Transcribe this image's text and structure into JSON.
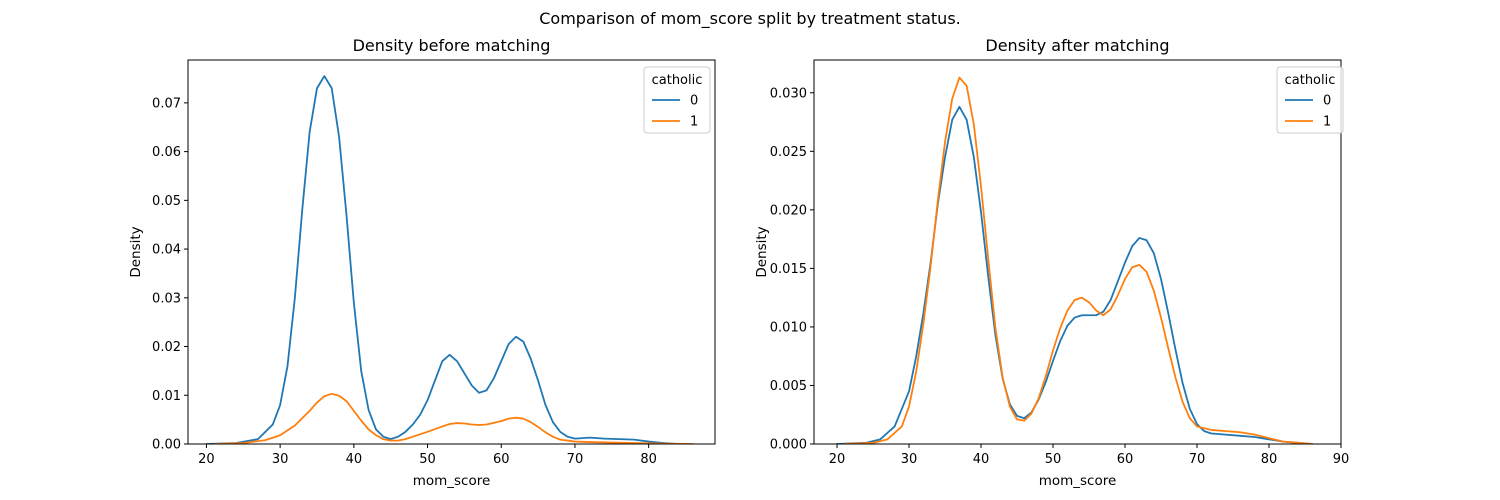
{
  "figure": {
    "suptitle": "Comparison of mom_score split by treatment status."
  },
  "chart_data": [
    {
      "type": "line",
      "title": "Density before matching",
      "xlabel": "mom_score",
      "ylabel": "Density",
      "xlim": [
        17.5,
        89
      ],
      "ylim": [
        0,
        0.0788
      ],
      "xticks": [
        20,
        30,
        40,
        50,
        60,
        70,
        80
      ],
      "yticks": [
        0.0,
        0.01,
        0.02,
        0.03,
        0.04,
        0.05,
        0.06,
        0.07
      ],
      "ytick_decimals": 2,
      "legend": {
        "title": "catholic",
        "placement": "top-right"
      },
      "grid": false,
      "series": [
        {
          "name": "0",
          "color": "#1f77b4",
          "points": [
            [
              20,
              0.0
            ],
            [
              24,
              0.0002
            ],
            [
              27,
              0.001
            ],
            [
              29,
              0.004
            ],
            [
              30,
              0.008
            ],
            [
              31,
              0.016
            ],
            [
              32,
              0.03
            ],
            [
              33,
              0.048
            ],
            [
              34,
              0.064
            ],
            [
              35,
              0.073
            ],
            [
              36,
              0.0755
            ],
            [
              37,
              0.073
            ],
            [
              38,
              0.063
            ],
            [
              39,
              0.047
            ],
            [
              40,
              0.029
            ],
            [
              41,
              0.015
            ],
            [
              42,
              0.007
            ],
            [
              43,
              0.003
            ],
            [
              44,
              0.0015
            ],
            [
              45,
              0.001
            ],
            [
              46,
              0.0015
            ],
            [
              47,
              0.0025
            ],
            [
              48,
              0.004
            ],
            [
              49,
              0.006
            ],
            [
              50,
              0.009
            ],
            [
              51,
              0.013
            ],
            [
              52,
              0.017
            ],
            [
              53,
              0.0183
            ],
            [
              54,
              0.017
            ],
            [
              55,
              0.0145
            ],
            [
              56,
              0.012
            ],
            [
              57,
              0.0105
            ],
            [
              58,
              0.011
            ],
            [
              59,
              0.0135
            ],
            [
              60,
              0.017
            ],
            [
              61,
              0.0205
            ],
            [
              62,
              0.022
            ],
            [
              63,
              0.021
            ],
            [
              64,
              0.0175
            ],
            [
              65,
              0.013
            ],
            [
              66,
              0.008
            ],
            [
              67,
              0.0045
            ],
            [
              68,
              0.0025
            ],
            [
              69,
              0.0015
            ],
            [
              70,
              0.0011
            ],
            [
              72,
              0.0013
            ],
            [
              74,
              0.0011
            ],
            [
              76,
              0.001
            ],
            [
              78,
              0.0009
            ],
            [
              80,
              0.0005
            ],
            [
              82,
              0.0002
            ],
            [
              84,
              0.0
            ]
          ]
        },
        {
          "name": "1",
          "color": "#ff7f0e",
          "points": [
            [
              21,
              0.0
            ],
            [
              25,
              0.0002
            ],
            [
              28,
              0.0008
            ],
            [
              30,
              0.0018
            ],
            [
              32,
              0.0038
            ],
            [
              34,
              0.0068
            ],
            [
              35,
              0.0085
            ],
            [
              36,
              0.0098
            ],
            [
              37,
              0.0103
            ],
            [
              38,
              0.0099
            ],
            [
              39,
              0.0088
            ],
            [
              40,
              0.0068
            ],
            [
              41,
              0.0048
            ],
            [
              42,
              0.003
            ],
            [
              43,
              0.0018
            ],
            [
              44,
              0.001
            ],
            [
              45,
              0.0007
            ],
            [
              46,
              0.0007
            ],
            [
              47,
              0.001
            ],
            [
              48,
              0.0015
            ],
            [
              50,
              0.0025
            ],
            [
              52,
              0.0036
            ],
            [
              53,
              0.0041
            ],
            [
              54,
              0.0043
            ],
            [
              55,
              0.0042
            ],
            [
              56,
              0.004
            ],
            [
              57,
              0.0039
            ],
            [
              58,
              0.004
            ],
            [
              60,
              0.0047
            ],
            [
              61,
              0.0052
            ],
            [
              62,
              0.0054
            ],
            [
              63,
              0.0052
            ],
            [
              64,
              0.0045
            ],
            [
              65,
              0.0035
            ],
            [
              66,
              0.0024
            ],
            [
              67,
              0.0015
            ],
            [
              68,
              0.0009
            ],
            [
              70,
              0.0005
            ],
            [
              72,
              0.0004
            ],
            [
              75,
              0.0003
            ],
            [
              78,
              0.0002
            ],
            [
              81,
              0.0001
            ],
            [
              86,
              0.0
            ]
          ]
        }
      ]
    },
    {
      "type": "line",
      "title": "Density after matching",
      "xlabel": "mom_score",
      "ylabel": "Density",
      "xlim": [
        16.8,
        90
      ],
      "ylim": [
        0,
        0.0328
      ],
      "xticks": [
        20,
        30,
        40,
        50,
        60,
        70,
        80,
        90
      ],
      "yticks": [
        0.0,
        0.005,
        0.01,
        0.015,
        0.02,
        0.025,
        0.03
      ],
      "ytick_decimals": 3,
      "legend": {
        "title": "catholic",
        "placement": "top-right"
      },
      "grid": false,
      "series": [
        {
          "name": "0",
          "color": "#1f77b4",
          "points": [
            [
              20,
              0.0
            ],
            [
              24,
              0.0001
            ],
            [
              26,
              0.0004
            ],
            [
              28,
              0.0015
            ],
            [
              30,
              0.0045
            ],
            [
              31,
              0.0075
            ],
            [
              32,
              0.0112
            ],
            [
              33,
              0.0155
            ],
            [
              34,
              0.0205
            ],
            [
              35,
              0.0245
            ],
            [
              36,
              0.0277
            ],
            [
              37,
              0.0288
            ],
            [
              38,
              0.0277
            ],
            [
              39,
              0.0245
            ],
            [
              40,
              0.0198
            ],
            [
              41,
              0.0143
            ],
            [
              42,
              0.0093
            ],
            [
              43,
              0.0056
            ],
            [
              44,
              0.0034
            ],
            [
              45,
              0.0024
            ],
            [
              46,
              0.0022
            ],
            [
              47,
              0.0027
            ],
            [
              48,
              0.0038
            ],
            [
              49,
              0.0053
            ],
            [
              50,
              0.0071
            ],
            [
              51,
              0.0088
            ],
            [
              52,
              0.0101
            ],
            [
              53,
              0.0108
            ],
            [
              54,
              0.011
            ],
            [
              55,
              0.011
            ],
            [
              56,
              0.011
            ],
            [
              57,
              0.0113
            ],
            [
              58,
              0.0123
            ],
            [
              59,
              0.0139
            ],
            [
              60,
              0.0155
            ],
            [
              61,
              0.0169
            ],
            [
              62,
              0.0176
            ],
            [
              63,
              0.0174
            ],
            [
              64,
              0.0163
            ],
            [
              65,
              0.0141
            ],
            [
              66,
              0.0112
            ],
            [
              67,
              0.0081
            ],
            [
              68,
              0.0052
            ],
            [
              69,
              0.003
            ],
            [
              70,
              0.0017
            ],
            [
              71,
              0.0011
            ],
            [
              72,
              0.0009
            ],
            [
              74,
              0.0008
            ],
            [
              76,
              0.0007
            ],
            [
              78,
              0.0006
            ],
            [
              80,
              0.0004
            ],
            [
              82,
              0.0002
            ],
            [
              84,
              0.0001
            ],
            [
              86,
              0.0
            ]
          ]
        },
        {
          "name": "1",
          "color": "#ff7f0e",
          "points": [
            [
              21,
              0.0
            ],
            [
              25,
              0.0001
            ],
            [
              27,
              0.0004
            ],
            [
              29,
              0.0015
            ],
            [
              30,
              0.0032
            ],
            [
              31,
              0.0062
            ],
            [
              32,
              0.0103
            ],
            [
              33,
              0.0152
            ],
            [
              34,
              0.0208
            ],
            [
              35,
              0.0258
            ],
            [
              36,
              0.0295
            ],
            [
              37,
              0.0313
            ],
            [
              38,
              0.0306
            ],
            [
              39,
              0.0273
            ],
            [
              40,
              0.022
            ],
            [
              41,
              0.0158
            ],
            [
              42,
              0.0099
            ],
            [
              43,
              0.0057
            ],
            [
              44,
              0.0032
            ],
            [
              45,
              0.0021
            ],
            [
              46,
              0.002
            ],
            [
              47,
              0.0026
            ],
            [
              48,
              0.0039
            ],
            [
              49,
              0.0058
            ],
            [
              50,
              0.008
            ],
            [
              51,
              0.0099
            ],
            [
              52,
              0.0114
            ],
            [
              53,
              0.0123
            ],
            [
              54,
              0.0125
            ],
            [
              55,
              0.0121
            ],
            [
              56,
              0.0114
            ],
            [
              57,
              0.011
            ],
            [
              58,
              0.0115
            ],
            [
              59,
              0.0127
            ],
            [
              60,
              0.0141
            ],
            [
              61,
              0.0151
            ],
            [
              62,
              0.0153
            ],
            [
              63,
              0.0147
            ],
            [
              64,
              0.0131
            ],
            [
              65,
              0.0108
            ],
            [
              66,
              0.0082
            ],
            [
              67,
              0.0057
            ],
            [
              68,
              0.0036
            ],
            [
              69,
              0.0022
            ],
            [
              70,
              0.0015
            ],
            [
              72,
              0.0012
            ],
            [
              74,
              0.0011
            ],
            [
              76,
              0.001
            ],
            [
              78,
              0.0008
            ],
            [
              80,
              0.0005
            ],
            [
              82,
              0.0002
            ],
            [
              84,
              0.0001
            ],
            [
              86,
              0.0
            ]
          ]
        }
      ]
    }
  ]
}
